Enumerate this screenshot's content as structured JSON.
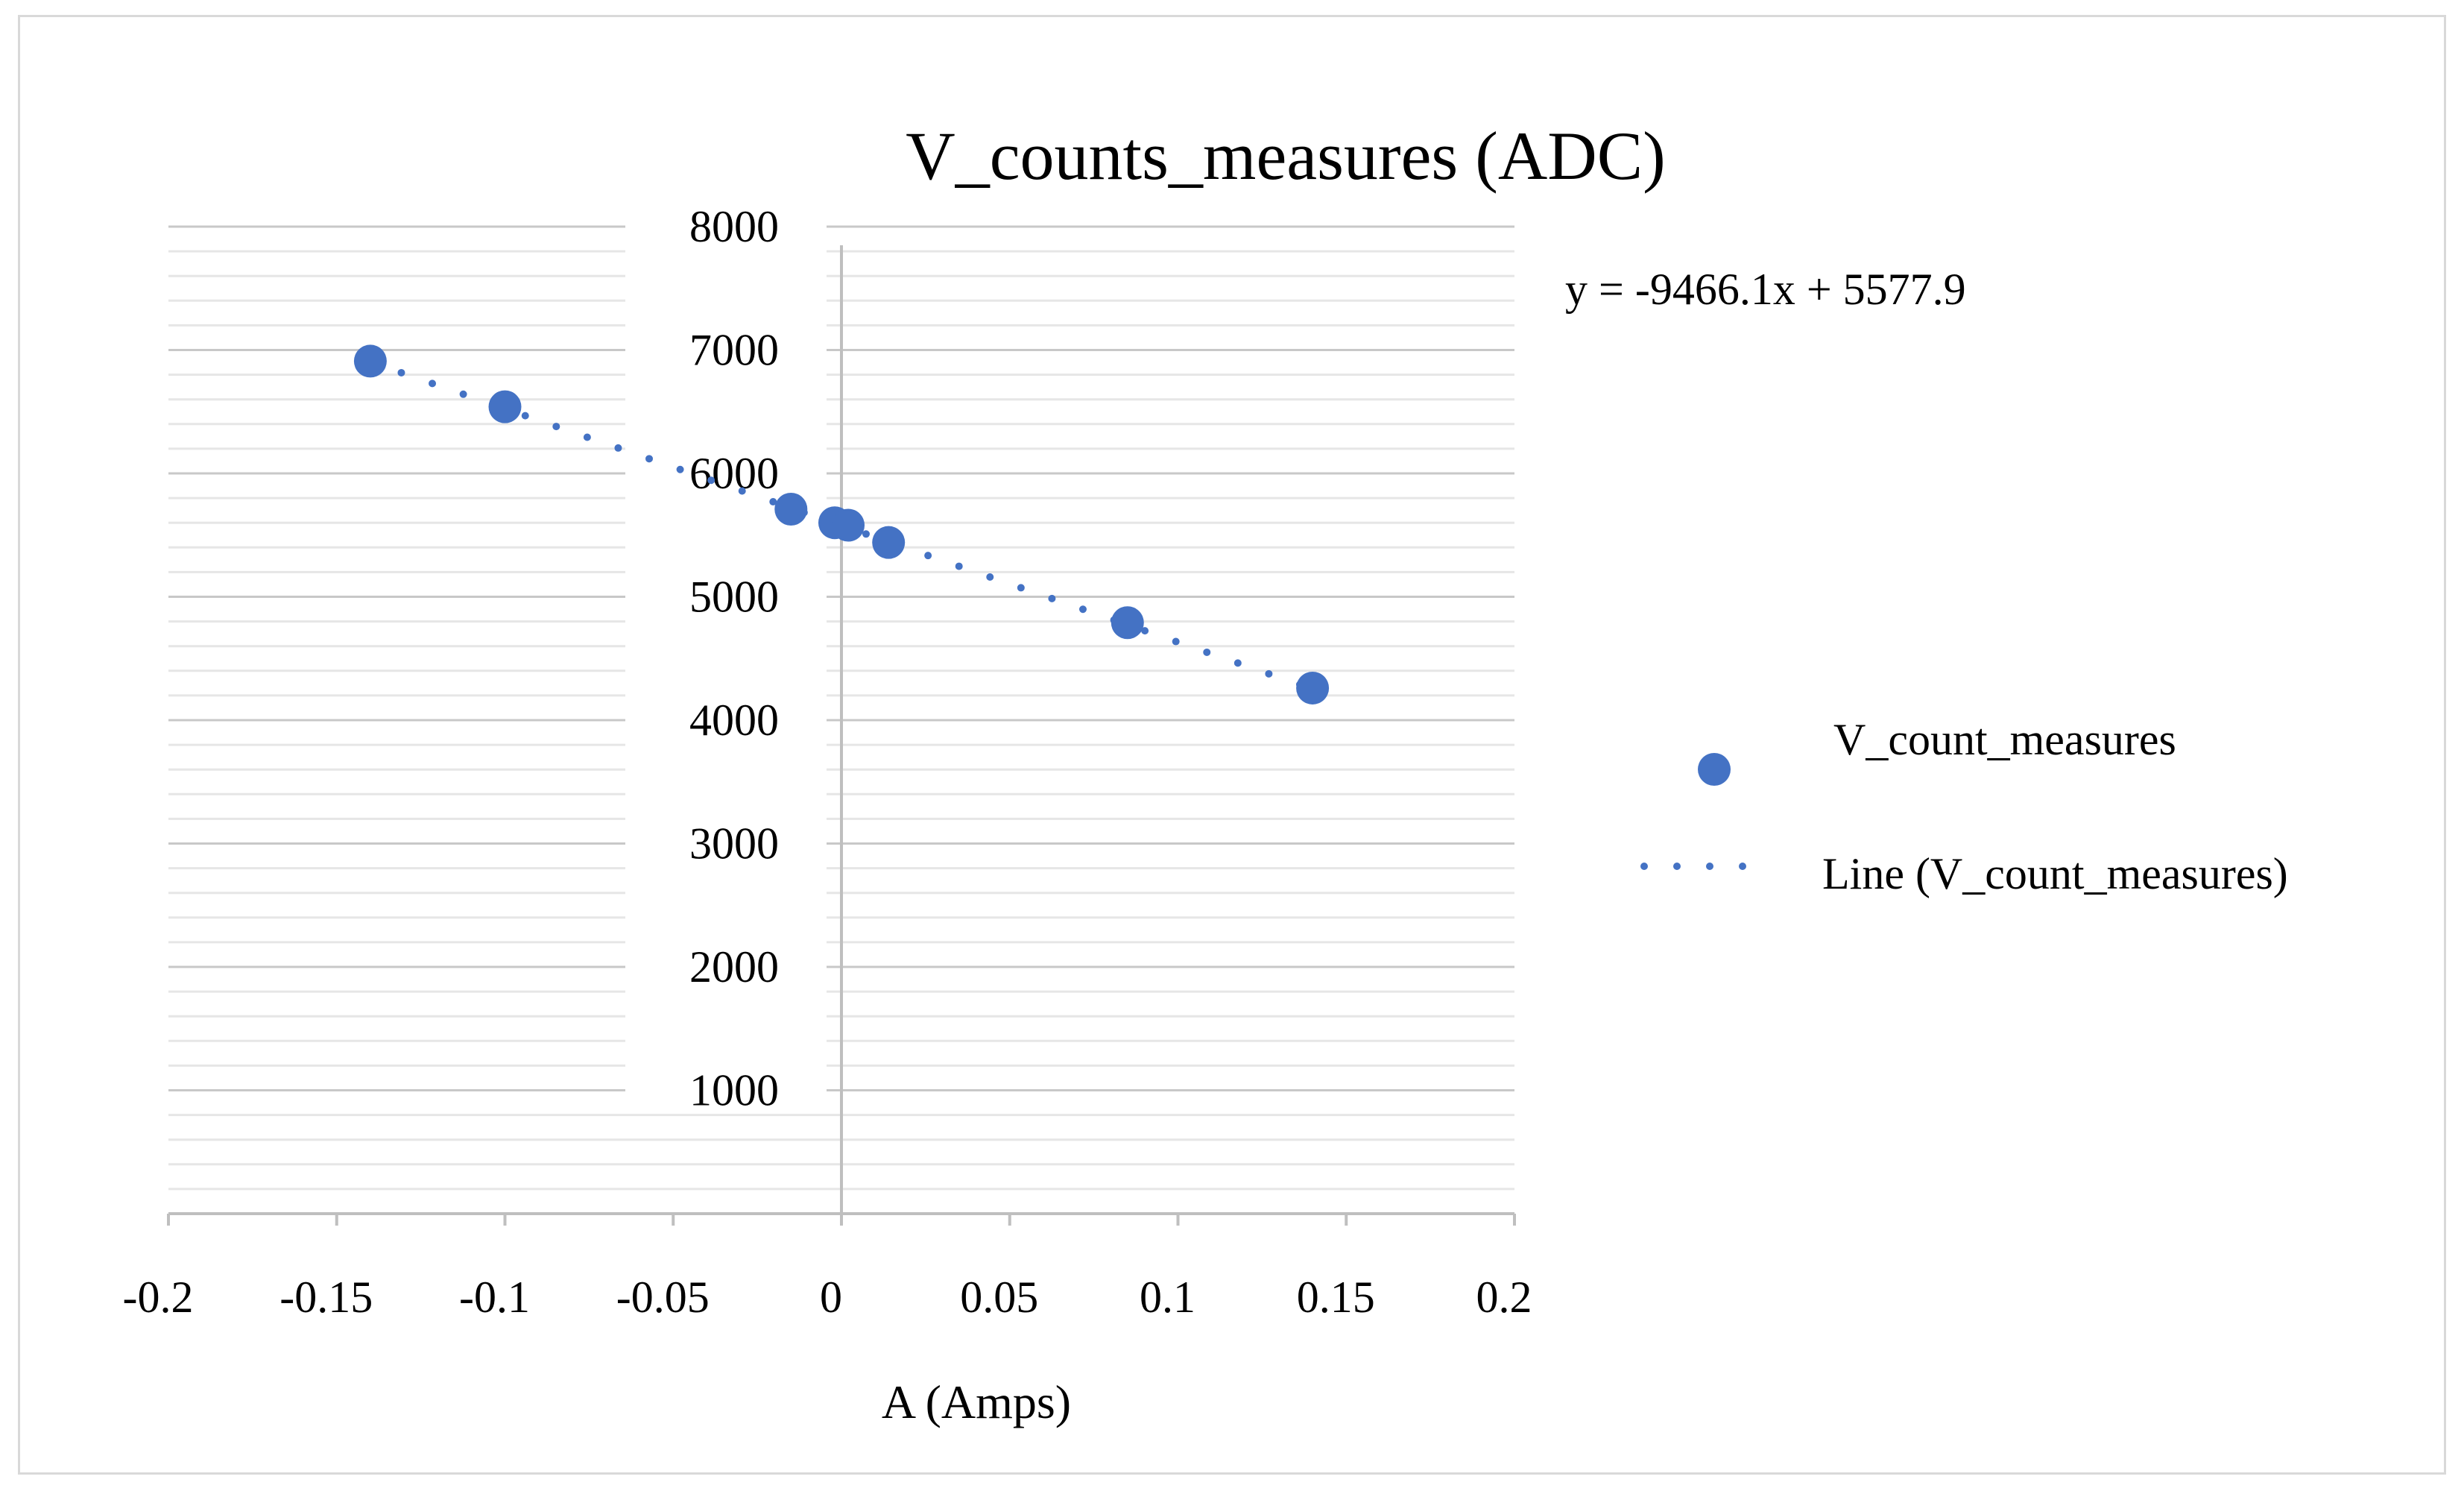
{
  "chart_data": {
    "type": "scatter",
    "title": "V_counts_measures (ADC)",
    "xlabel": "A (Amps)",
    "ylabel": "",
    "xlim": [
      -0.2,
      0.2
    ],
    "ylim": [
      0,
      8000
    ],
    "x_ticks": [
      "-0.2",
      "-0.15",
      "-0.1",
      "-0.05",
      "0",
      "0.05",
      "0.1",
      "0.15",
      "0.2"
    ],
    "y_ticks": [
      "1000",
      "2000",
      "3000",
      "4000",
      "5000",
      "6000",
      "7000",
      "8000"
    ],
    "grid": true,
    "series": [
      {
        "name": "V_count_measures",
        "color": "#4472c4",
        "x": [
          -0.14,
          -0.1,
          -0.015,
          -0.002,
          0.002,
          0.014,
          0.085,
          0.14
        ],
        "y": [
          6910,
          6540,
          5710,
          5600,
          5580,
          5440,
          4790,
          4260
        ]
      }
    ],
    "trendline": {
      "name": "Line (V_count_measures)",
      "type": "linear",
      "slope": -9466.1,
      "intercept": 5577.9,
      "style": "dotted",
      "color": "#4472c4",
      "equation_label": "y = -9466.1x + 5577.9"
    },
    "legend_position": "right"
  }
}
